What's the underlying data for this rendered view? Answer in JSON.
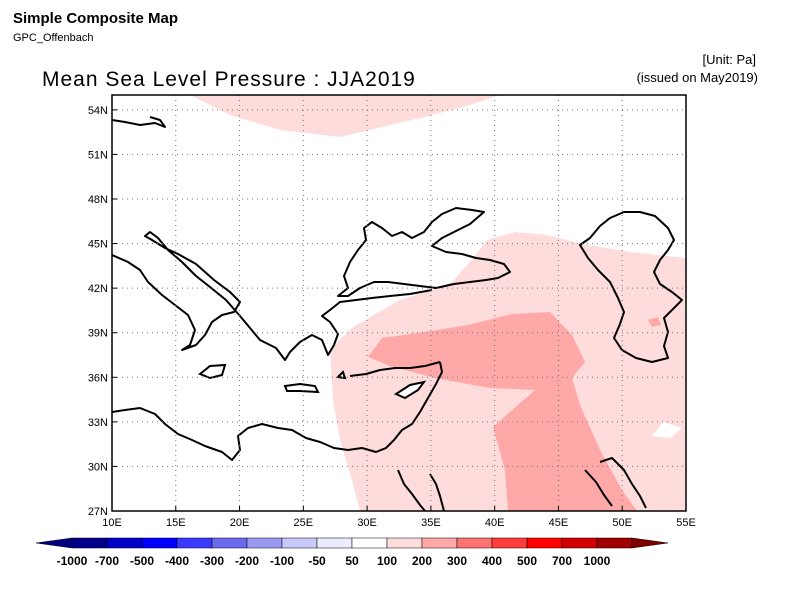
{
  "header": {
    "title": "Simple Composite Map",
    "subtitle": "GPC_Offenbach",
    "unit": "[Unit: Pa]",
    "issued": "(issued on May2019)"
  },
  "map": {
    "title": "Mean Sea Level Pressure : JJA2019",
    "lon_range": [
      10,
      55
    ],
    "lat_range": [
      27,
      55
    ],
    "x_ticks": [
      "10E",
      "15E",
      "20E",
      "25E",
      "30E",
      "35E",
      "40E",
      "45E",
      "50E",
      "55E"
    ],
    "y_ticks": [
      "27N",
      "30N",
      "33N",
      "36N",
      "39N",
      "42N",
      "45N",
      "48N",
      "51N",
      "54N"
    ],
    "grid": true
  },
  "colorbar": {
    "labels": [
      "-1000",
      "-700",
      "-500",
      "-400",
      "-300",
      "-200",
      "-100",
      "-50",
      "50",
      "100",
      "200",
      "300",
      "400",
      "500",
      "700",
      "1000"
    ],
    "colors": [
      "#00008b",
      "#0000c8",
      "#0000ff",
      "#3a3aff",
      "#6a6aee",
      "#9a9af5",
      "#c8c8fa",
      "#ececfd",
      "#ffffff",
      "#ffdcdc",
      "#ffa8a8",
      "#ff7272",
      "#ff3c3c",
      "#ff0000",
      "#d20000",
      "#a00000"
    ],
    "palette": {
      "light_red": "#ffdcdc",
      "mid_red": "#ffa8a8"
    }
  }
}
